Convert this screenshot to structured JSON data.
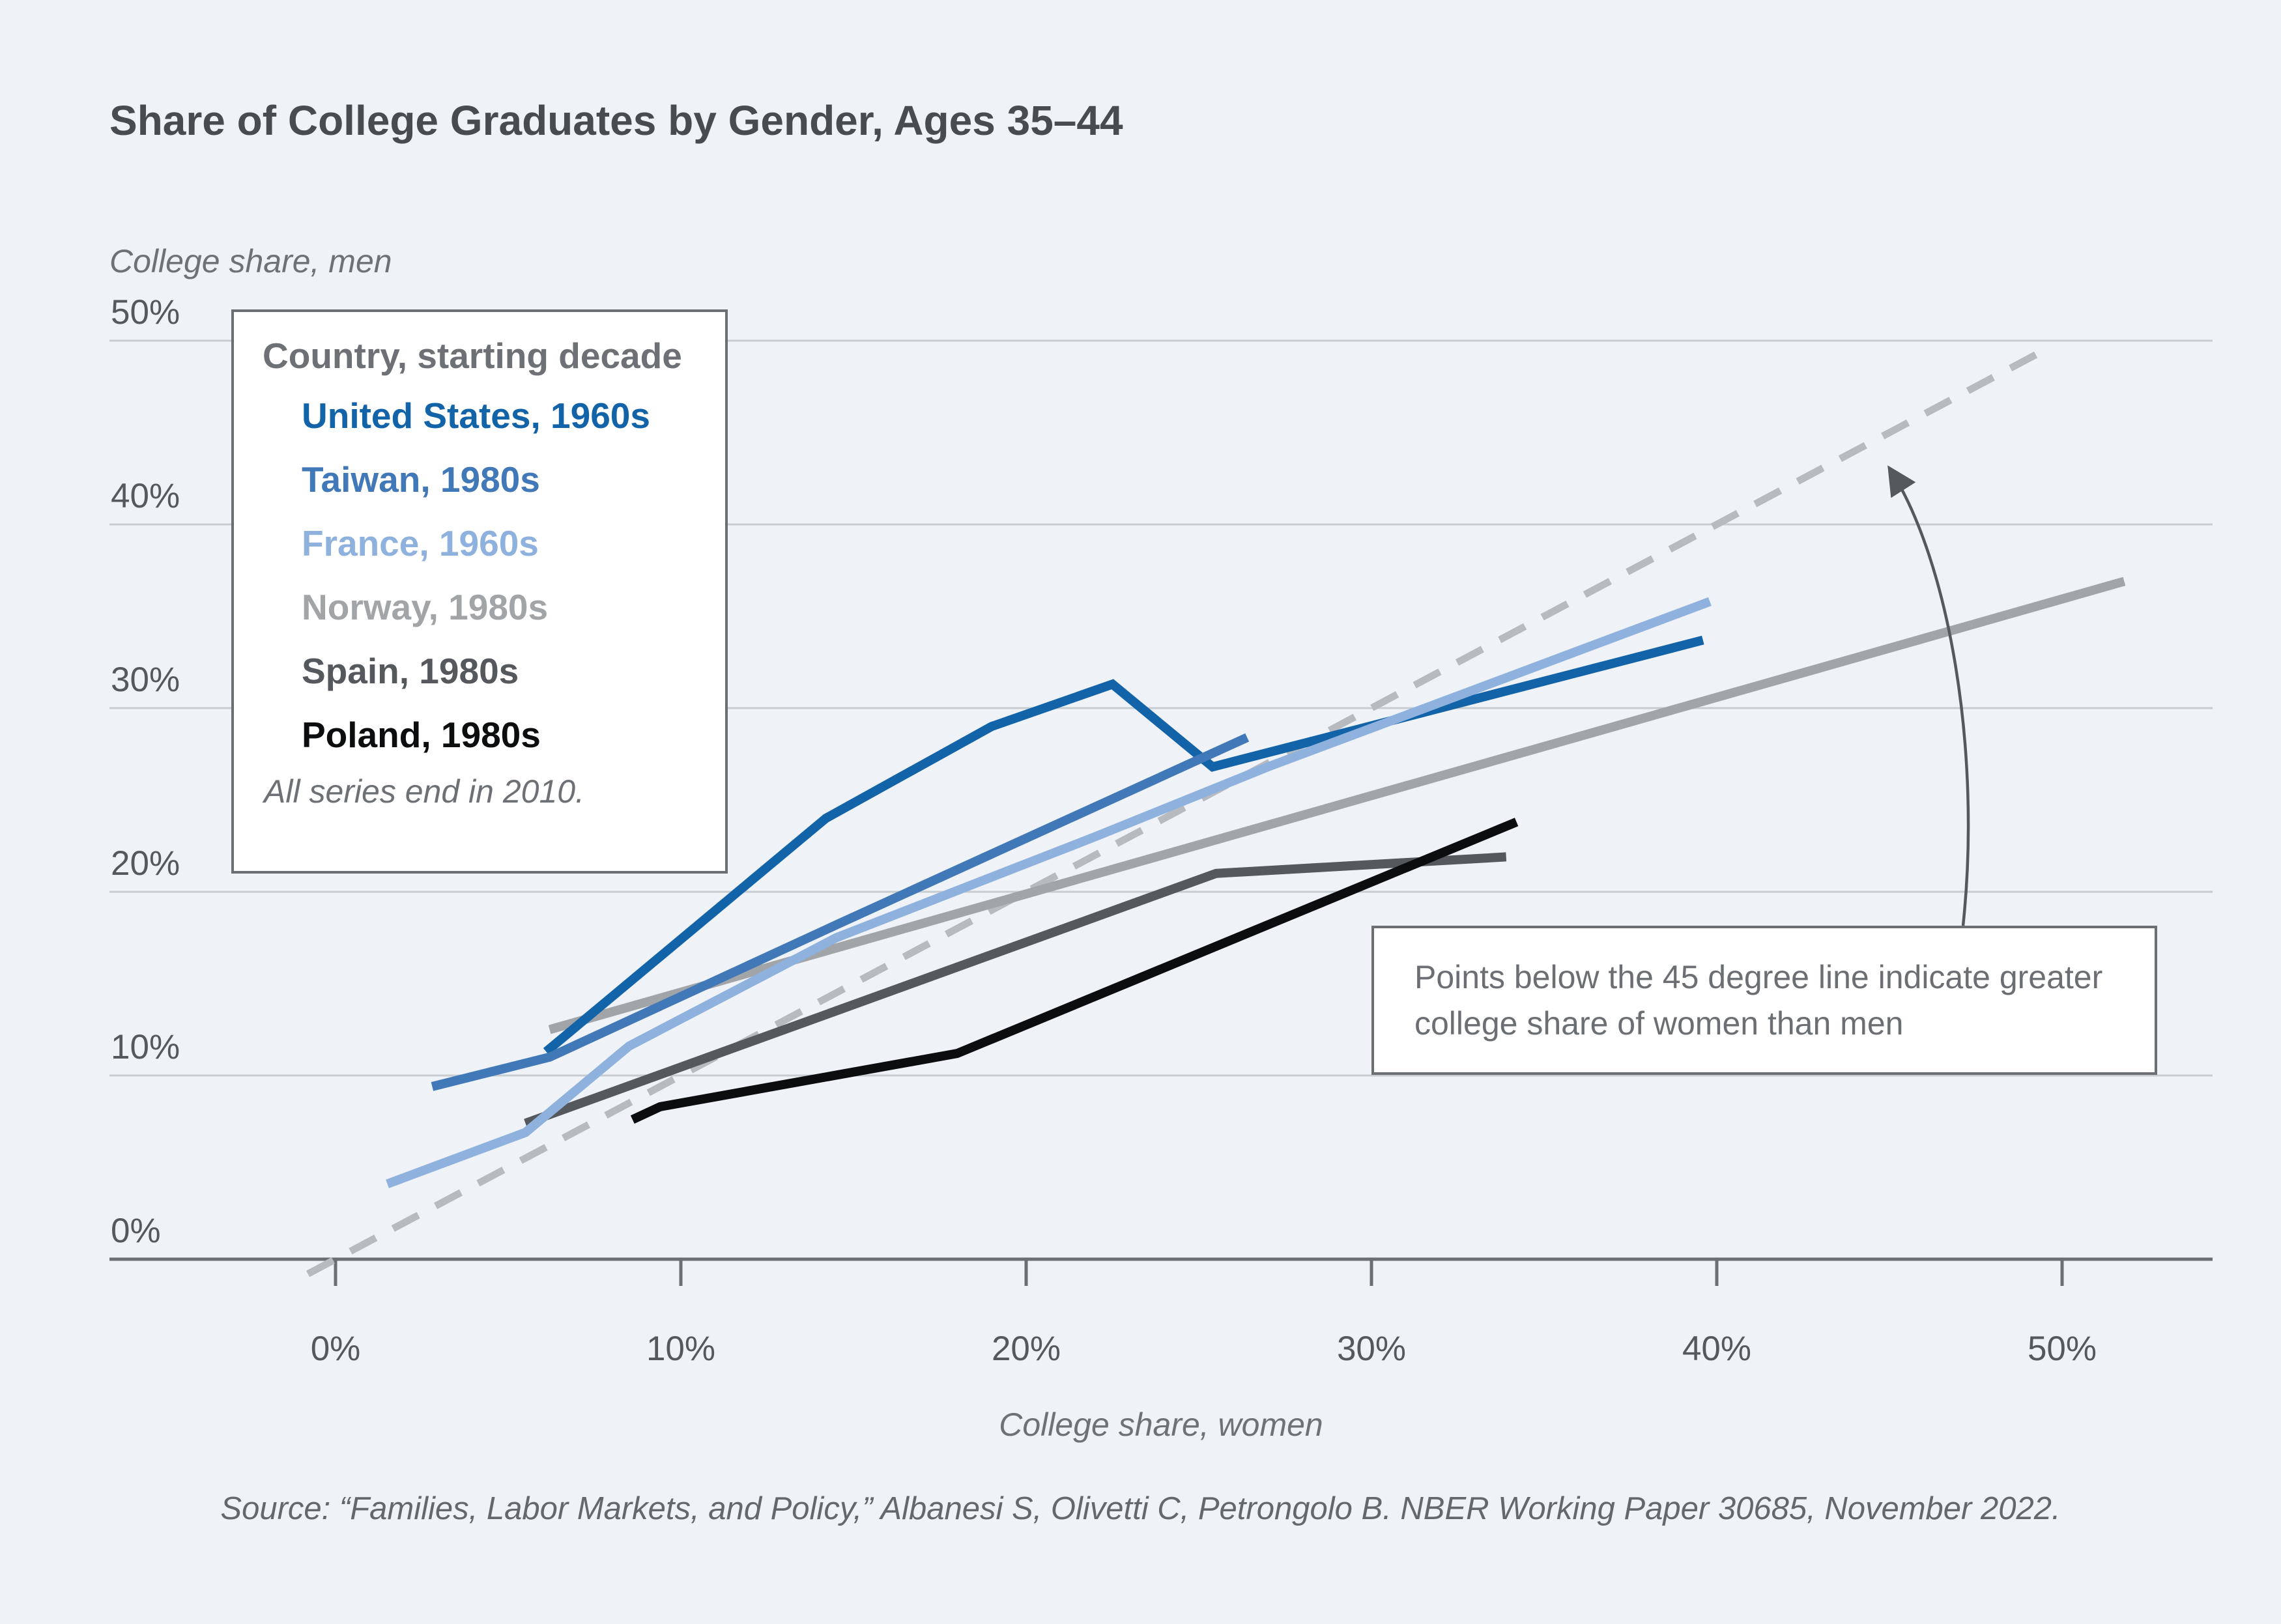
{
  "title": "Share of College Graduates by Gender, Ages 35–44",
  "legend": {
    "title": "Country, starting decade",
    "note": "All series end in 2010.",
    "items": [
      {
        "label": "United States, 1960s",
        "color": "#1263a8"
      },
      {
        "label": "Taiwan, 1980s",
        "color": "#4178b7"
      },
      {
        "label": "France, 1960s",
        "color": "#8fb1dd"
      },
      {
        "label": "Norway, 1980s",
        "color": "#a2a5a8"
      },
      {
        "label": "Spain, 1980s",
        "color": "#55585c"
      },
      {
        "label": "Poland, 1980s",
        "color": "#0b0d0f"
      }
    ]
  },
  "annotation": {
    "text": "Points below the 45 degree line indicate greater college share of women than men"
  },
  "source": "Source: “Families, Labor Markets, and Policy,” Albanesi S, Olivetti C, Petrongolo B. NBER Working Paper 30685, November 2022.",
  "chart_data": {
    "type": "line",
    "title": "Share of College Graduates by Gender, Ages 35–44",
    "xlabel": "College share, women",
    "ylabel": "College share, men",
    "x_tick_labels": [
      "0%",
      "10%",
      "20%",
      "30%",
      "40%",
      "50%"
    ],
    "y_tick_labels": [
      "50%",
      "40%",
      "30%",
      "20%",
      "10%",
      "0%"
    ],
    "x_tick_values": [
      0,
      10,
      20,
      30,
      40,
      50
    ],
    "y_tick_values": [
      0,
      10,
      20,
      30,
      40,
      50
    ],
    "xlim": [
      -6.5,
      57
    ],
    "ylim": [
      -2,
      53
    ],
    "grid": true,
    "legend_position": "upper-left",
    "units": "percent",
    "reference_line": {
      "name": "45 degree line",
      "style": "dashed",
      "color": "#b7bbc0",
      "points": [
        [
          -0.8,
          -0.8
        ],
        [
          49.7,
          49.7
        ]
      ]
    },
    "series": [
      {
        "name": "Norway, 1980s",
        "color": "#a2a5a8",
        "points": [
          [
            6.2,
            12.5
          ],
          [
            51.8,
            36.9
          ]
        ]
      },
      {
        "name": "Spain, 1980s",
        "color": "#55585c",
        "points": [
          [
            5.5,
            7.4
          ],
          [
            25.5,
            21.0
          ],
          [
            33.9,
            21.9
          ]
        ]
      },
      {
        "name": "Poland, 1980s",
        "color": "#0b0d0f",
        "points": [
          [
            8.6,
            7.6
          ],
          [
            9.4,
            8.3
          ],
          [
            18.0,
            11.2
          ],
          [
            34.2,
            23.8
          ]
        ]
      },
      {
        "name": "United States, 1960s",
        "color": "#1263a8",
        "points": [
          [
            6.1,
            11.3
          ],
          [
            14.2,
            24.0
          ],
          [
            19.0,
            29.0
          ],
          [
            22.5,
            31.3
          ],
          [
            25.4,
            26.8
          ],
          [
            39.6,
            33.7
          ]
        ]
      },
      {
        "name": "Taiwan, 1980s",
        "color": "#4178b7",
        "points": [
          [
            2.8,
            9.4
          ],
          [
            6.2,
            11.0
          ],
          [
            14.5,
            18.2
          ],
          [
            26.4,
            28.4
          ]
        ]
      },
      {
        "name": "France, 1960s",
        "color": "#8fb1dd",
        "points": [
          [
            1.5,
            4.1
          ],
          [
            5.5,
            6.9
          ],
          [
            8.5,
            11.6
          ],
          [
            14.5,
            17.5
          ],
          [
            22.0,
            23.0
          ],
          [
            27.0,
            26.8
          ],
          [
            39.8,
            35.8
          ]
        ]
      }
    ]
  }
}
